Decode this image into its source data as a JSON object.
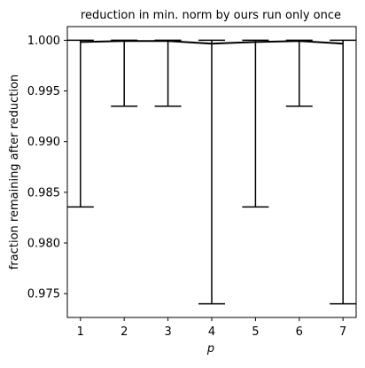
{
  "chart_data": {
    "type": "line",
    "title": "reduction in min. norm by ours run only once",
    "xlabel": "p",
    "ylabel": "fraction remaining after reduction",
    "x": [
      1,
      2,
      3,
      4,
      5,
      6,
      7
    ],
    "series": [
      {
        "values": [
          0.99983,
          0.99993,
          0.99993,
          0.99967,
          0.99983,
          0.99993,
          0.99967
        ],
        "error_lower": [
          0.98355,
          0.9935,
          0.9935,
          0.974,
          0.98355,
          0.9935,
          0.974
        ],
        "error_upper": [
          1.0,
          1.0,
          1.0,
          1.0,
          1.0,
          1.0,
          1.0
        ],
        "color": "#000000"
      }
    ],
    "xlim": [
      0.7,
      7.3
    ],
    "ylim": [
      0.97265,
      1.00135
    ],
    "xticks": [
      "1",
      "2",
      "3",
      "4",
      "5",
      "6",
      "7"
    ],
    "yticks": [
      0.975,
      0.98,
      0.985,
      0.99,
      0.995,
      1.0
    ],
    "ytick_labels": [
      "0.975",
      "0.980",
      "0.985",
      "0.990",
      "0.995",
      "1.000"
    ],
    "grid": false,
    "legend": "none"
  }
}
